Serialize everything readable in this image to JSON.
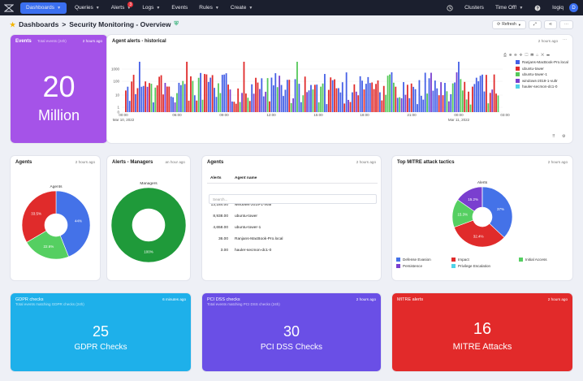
{
  "nav": {
    "items": [
      {
        "label": "Dashboards",
        "caret": true,
        "active": true
      },
      {
        "label": "Queries",
        "caret": true
      },
      {
        "label": "Alerts",
        "caret": true,
        "badge": "3"
      },
      {
        "label": "Logs",
        "caret": true
      },
      {
        "label": "Events",
        "caret": false
      },
      {
        "label": "Rules",
        "caret": true
      },
      {
        "label": "Create",
        "caret": true
      }
    ],
    "clusters": "Clusters",
    "time_off": "Time Off!",
    "user": "logiq",
    "avatar": "D"
  },
  "breadcrumb": {
    "root": "Dashboards",
    "separator": ">",
    "page": "Security Monitoring - Overview"
  },
  "toolbar": {
    "refresh": "Refresh"
  },
  "events_card": {
    "title": "Events",
    "subtitle": "Total events (24h)",
    "ago": "2 hours ago",
    "value": "20",
    "unit": "Million",
    "color": "#a553e8"
  },
  "alerts_hist": {
    "title": "Agent alerts - historical",
    "ago": "2 hours ago",
    "chart_data": {
      "type": "bar",
      "yscale": "log",
      "yticks": [
        "1000",
        "100",
        "10",
        "1",
        "0"
      ],
      "xticks": [
        "00:00",
        "06:00",
        "09:00",
        "12:00",
        "15:00",
        "18:00",
        "21:00",
        "00:00",
        "03:00"
      ],
      "xsub": [
        "Mar 10, 2022",
        "Mar 11, 2022"
      ],
      "series": [
        {
          "name": "Ranjans-MacBook-Pro.local",
          "color": "#4560e6"
        },
        {
          "name": "ubuntu-tower",
          "color": "#e02b2b"
        },
        {
          "name": "ubuntu-tower-1",
          "color": "#55c85a"
        },
        {
          "name": "windows-2019-1-vultr",
          "color": "#7a3fcf"
        },
        {
          "name": "hauler-secmon-dc1-0",
          "color": "#4fd3e8"
        }
      ]
    }
  },
  "agents_pie": {
    "title": "Agents",
    "ago": "2 hours ago",
    "chart_data": {
      "type": "pie",
      "title": "Agents",
      "labels": [
        "ubuntu-tower",
        "ubuntu-tower-1",
        "windows-2019-1-vultr"
      ],
      "values": [
        44,
        22.6,
        33.5
      ],
      "display": [
        "44%",
        "22.6%",
        "33.5%"
      ],
      "colors": [
        "#4472e8",
        "#55cf61",
        "#e02b2b"
      ]
    }
  },
  "managers_pie": {
    "title": "Alerts - Managers",
    "ago": "an hour ago",
    "chart_data": {
      "type": "pie",
      "title": "Managers",
      "labels": [
        "Managers"
      ],
      "values": [
        100
      ],
      "display": [
        "100%"
      ],
      "colors": [
        "#1f9a3a"
      ]
    }
  },
  "agents_table": {
    "title": "Agents",
    "ago": "2 hours ago",
    "columns": [
      "Alerts",
      "Agent name"
    ],
    "search_placeholder": "Search...",
    "rows": [
      {
        "alerts": "13,184.00",
        "name": "windows-2019-1-vultr"
      },
      {
        "alerts": "8,938.00",
        "name": "ubuntu-tower"
      },
      {
        "alerts": "4,658.00",
        "name": "ubuntu-tower-1"
      },
      {
        "alerts": "36.00",
        "name": "Ranjans-MacBook-Pro.local"
      },
      {
        "alerts": "3.00",
        "name": "hauler-secmon-dc1-0"
      }
    ]
  },
  "mitre_pie": {
    "title": "Top MITRE attack tactics",
    "ago": "2 hours ago",
    "chart_data": {
      "type": "pie",
      "title": "Alerts",
      "labels": [
        "Defense Evasion",
        "Impact",
        "Initial Access",
        "Persistence",
        "Privilege Escalation"
      ],
      "values": [
        37,
        32.4,
        15.3,
        15.2,
        0.1
      ],
      "display": [
        "37%",
        "32.4%",
        "15.3%",
        "15.2%",
        ""
      ],
      "colors": [
        "#4472e8",
        "#e02b2b",
        "#55cf61",
        "#7a3fcf",
        "#4fd3e8"
      ]
    }
  },
  "gdpr": {
    "title": "GDPR checks",
    "subtitle": "Total events matching GDPR checks (24h)",
    "ago": "6 minutes ago",
    "value": "25",
    "label": "GDPR Checks",
    "color": "#1eb0ea"
  },
  "pci": {
    "title": "PCI DSS checks",
    "subtitle": "Total events matching PCI DSS checks (24h)",
    "ago": "2 hours ago",
    "value": "30",
    "label": "PCI DSS Checks",
    "color": "#6a4fe6"
  },
  "mitre_alerts": {
    "title": "MITRE alerts",
    "ago": "2 hours ago",
    "value": "16",
    "label": "MITRE Attacks",
    "color": "#e22a2a"
  }
}
